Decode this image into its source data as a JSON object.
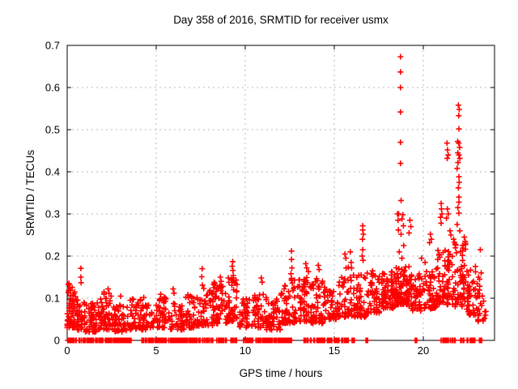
{
  "chart_data": {
    "type": "scatter",
    "title": "Day 358 of 2016, SRMTID for receiver usmx",
    "xlabel": "GPS time / hours",
    "ylabel": "SRMTID / TECUs",
    "xlim": [
      0,
      24
    ],
    "ylim": [
      0,
      0.7
    ],
    "xticks": [
      0,
      5,
      10,
      15,
      20
    ],
    "xtick_labels": [
      "0",
      "5",
      "10",
      "15",
      "20"
    ],
    "yticks": [
      0,
      0.1,
      0.2,
      0.3,
      0.4,
      0.5,
      0.6,
      0.7
    ],
    "ytick_labels": [
      "0",
      "0.1",
      "0.2",
      "0.3",
      "0.4",
      "0.5",
      "0.6",
      "0.7"
    ],
    "grid": true,
    "legend": "none",
    "marker": {
      "shape": "plus",
      "color": "#ff0000",
      "size": 7
    },
    "colors": {
      "marker": "#ff0000",
      "grid": "#b8b8b8",
      "border": "#000000",
      "text": "#000000",
      "background": "#ffffff"
    },
    "seed": 1742,
    "outlier_points": [
      [
        18.72,
        0.673
      ],
      [
        18.72,
        0.637
      ],
      [
        18.72,
        0.6
      ],
      [
        18.72,
        0.542
      ],
      [
        18.72,
        0.47
      ],
      [
        18.72,
        0.42
      ],
      [
        18.75,
        0.332
      ],
      [
        18.62,
        0.3
      ],
      [
        18.85,
        0.298
      ],
      [
        18.8,
        0.288
      ],
      [
        18.88,
        0.272
      ],
      [
        18.6,
        0.262
      ],
      [
        18.75,
        0.252
      ],
      [
        18.9,
        0.225
      ],
      [
        18.65,
        0.21
      ],
      [
        18.8,
        0.195
      ],
      [
        18.55,
        0.3
      ],
      [
        18.58,
        0.285
      ],
      [
        19.25,
        0.285
      ],
      [
        19.3,
        0.27
      ],
      [
        19.2,
        0.255
      ],
      [
        21.97,
        0.558
      ],
      [
        22.02,
        0.548
      ],
      [
        21.99,
        0.533
      ],
      [
        22.0,
        0.502
      ],
      [
        21.93,
        0.472
      ],
      [
        21.99,
        0.468
      ],
      [
        22.04,
        0.458
      ],
      [
        21.94,
        0.445
      ],
      [
        22.0,
        0.44
      ],
      [
        22.05,
        0.432
      ],
      [
        21.95,
        0.422
      ],
      [
        21.9,
        0.408
      ],
      [
        22.0,
        0.388
      ],
      [
        22.02,
        0.375
      ],
      [
        21.97,
        0.362
      ],
      [
        22.0,
        0.34
      ],
      [
        22.0,
        0.328
      ],
      [
        21.94,
        0.315
      ],
      [
        22.0,
        0.302
      ],
      [
        21.9,
        0.275
      ],
      [
        22.05,
        0.26
      ],
      [
        21.33,
        0.468
      ],
      [
        21.36,
        0.452
      ],
      [
        21.4,
        0.44
      ],
      [
        21.34,
        0.432
      ],
      [
        21.35,
        0.312
      ],
      [
        21.4,
        0.3
      ],
      [
        21.3,
        0.29
      ],
      [
        21.0,
        0.325
      ],
      [
        21.02,
        0.312
      ],
      [
        21.05,
        0.3
      ],
      [
        20.97,
        0.292
      ],
      [
        21.0,
        0.278
      ],
      [
        21.5,
        0.26
      ],
      [
        21.55,
        0.25
      ],
      [
        21.7,
        0.24
      ],
      [
        22.3,
        0.245
      ],
      [
        22.35,
        0.235
      ],
      [
        22.2,
        0.225
      ],
      [
        20.4,
        0.252
      ],
      [
        20.45,
        0.24
      ],
      [
        20.35,
        0.232
      ],
      [
        16.6,
        0.272
      ],
      [
        16.6,
        0.262
      ],
      [
        16.63,
        0.252
      ],
      [
        16.58,
        0.24
      ],
      [
        16.6,
        0.215
      ],
      [
        16.57,
        0.2
      ],
      [
        16.62,
        0.19
      ],
      [
        0.77,
        0.171
      ],
      [
        0.77,
        0.15
      ],
      [
        0.78,
        0.137
      ],
      [
        0.1,
        0.135
      ],
      [
        0.15,
        0.125
      ],
      [
        0.08,
        0.118
      ],
      [
        9.3,
        0.187
      ],
      [
        9.27,
        0.176
      ],
      [
        9.31,
        0.166
      ],
      [
        9.33,
        0.154
      ],
      [
        9.29,
        0.143
      ],
      [
        9.25,
        0.131
      ],
      [
        9.35,
        0.12
      ],
      [
        12.6,
        0.212
      ],
      [
        12.6,
        0.192
      ],
      [
        12.62,
        0.172
      ],
      [
        12.57,
        0.158
      ],
      [
        12.6,
        0.147
      ],
      [
        12.64,
        0.136
      ],
      [
        7.58,
        0.17
      ],
      [
        7.56,
        0.151
      ],
      [
        7.6,
        0.131
      ],
      [
        13.4,
        0.182
      ],
      [
        13.45,
        0.172
      ],
      [
        13.55,
        0.163
      ],
      [
        14.1,
        0.178
      ],
      [
        14.15,
        0.168
      ],
      [
        15.6,
        0.205
      ],
      [
        15.65,
        0.195
      ],
      [
        15.9,
        0.21
      ],
      [
        15.95,
        0.185
      ],
      [
        17.15,
        0.165
      ],
      [
        17.2,
        0.155
      ],
      [
        19.9,
        0.195
      ],
      [
        20.1,
        0.185
      ],
      [
        10.9,
        0.148
      ],
      [
        10.95,
        0.138
      ],
      [
        2.3,
        0.122
      ],
      [
        2.35,
        0.112
      ],
      [
        3.0,
        0.105
      ],
      [
        5.95,
        0.122
      ],
      [
        6.0,
        0.112
      ],
      [
        8.6,
        0.15
      ],
      [
        8.65,
        0.14
      ],
      [
        4.3,
        0.102
      ],
      [
        23.2,
        0.215
      ],
      [
        23.25,
        0.16
      ],
      [
        23.1,
        0.15
      ]
    ],
    "noise_bands": [
      [
        0.0,
        0.5,
        55,
        0.03,
        0.135
      ],
      [
        0.5,
        1.0,
        40,
        0.025,
        0.1
      ],
      [
        1.0,
        1.8,
        60,
        0.02,
        0.09
      ],
      [
        1.8,
        2.6,
        55,
        0.025,
        0.115
      ],
      [
        2.6,
        3.4,
        48,
        0.02,
        0.085
      ],
      [
        3.4,
        4.2,
        45,
        0.025,
        0.1
      ],
      [
        4.2,
        5.0,
        40,
        0.025,
        0.085
      ],
      [
        5.0,
        5.8,
        48,
        0.03,
        0.11
      ],
      [
        5.8,
        6.6,
        45,
        0.025,
        0.09
      ],
      [
        6.6,
        7.4,
        48,
        0.03,
        0.11
      ],
      [
        7.4,
        8.2,
        45,
        0.035,
        0.125
      ],
      [
        8.2,
        9.0,
        55,
        0.04,
        0.14
      ],
      [
        9.0,
        9.6,
        40,
        0.045,
        0.15
      ],
      [
        9.6,
        10.4,
        40,
        0.03,
        0.1
      ],
      [
        10.4,
        11.2,
        45,
        0.03,
        0.11
      ],
      [
        11.2,
        12.0,
        50,
        0.025,
        0.1
      ],
      [
        12.0,
        12.8,
        55,
        0.04,
        0.145
      ],
      [
        12.8,
        13.6,
        55,
        0.045,
        0.155
      ],
      [
        13.6,
        14.4,
        55,
        0.04,
        0.15
      ],
      [
        14.4,
        15.2,
        50,
        0.05,
        0.13
      ],
      [
        15.2,
        16.0,
        50,
        0.055,
        0.175
      ],
      [
        16.0,
        16.8,
        50,
        0.055,
        0.16
      ],
      [
        16.8,
        17.6,
        55,
        0.065,
        0.16
      ],
      [
        17.6,
        18.4,
        70,
        0.075,
        0.165
      ],
      [
        18.4,
        19.2,
        85,
        0.085,
        0.175
      ],
      [
        19.2,
        20.0,
        55,
        0.07,
        0.16
      ],
      [
        20.0,
        20.8,
        55,
        0.075,
        0.17
      ],
      [
        20.8,
        21.6,
        65,
        0.085,
        0.215
      ],
      [
        21.6,
        22.4,
        70,
        0.08,
        0.235
      ],
      [
        22.4,
        23.0,
        45,
        0.06,
        0.18
      ],
      [
        23.0,
        23.55,
        25,
        0.045,
        0.155
      ]
    ],
    "zero_runs": [
      [
        0.02,
        0.55
      ],
      [
        0.62,
        1.5
      ],
      [
        1.6,
        2.6
      ],
      [
        2.65,
        3.6
      ],
      [
        4.1,
        4.55
      ],
      [
        4.62,
        5.6
      ],
      [
        5.7,
        6.65
      ],
      [
        6.7,
        7.5
      ],
      [
        7.55,
        8.3
      ],
      [
        8.35,
        8.95
      ],
      [
        9.2,
        9.6
      ],
      [
        9.9,
        10.35
      ],
      [
        10.42,
        11.1
      ],
      [
        11.15,
        12.05
      ],
      [
        12.1,
        12.8
      ],
      [
        13.3,
        14.9
      ],
      [
        15.0,
        15.35
      ],
      [
        15.42,
        15.78
      ],
      [
        16.0,
        16.2
      ],
      [
        16.78,
        16.9
      ],
      [
        19.5,
        19.68
      ],
      [
        21.0,
        21.45
      ],
      [
        21.52,
        21.8
      ],
      [
        22.1,
        22.55
      ],
      [
        22.62,
        22.9
      ],
      [
        23.15,
        23.32
      ]
    ]
  }
}
